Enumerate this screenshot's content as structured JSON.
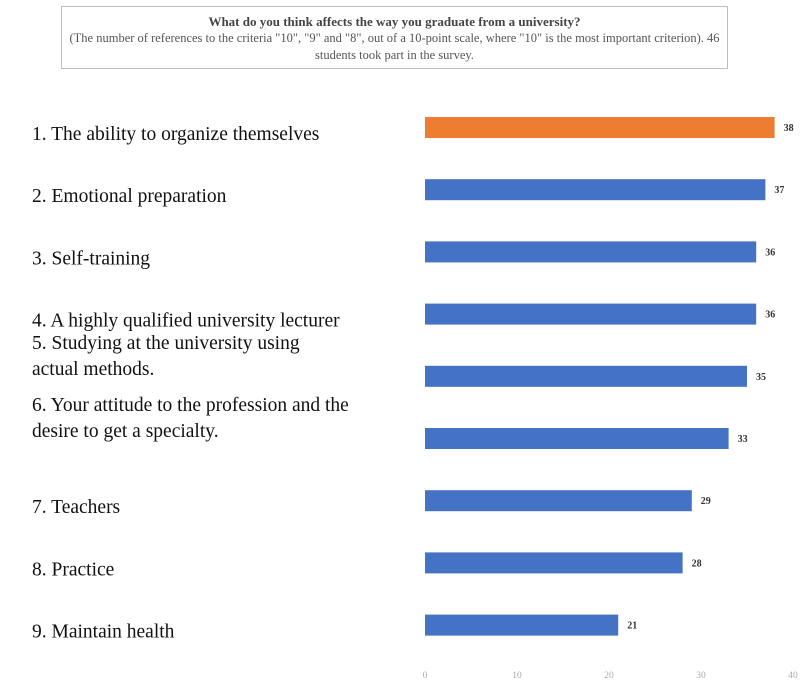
{
  "chart_data": {
    "type": "bar",
    "orientation": "horizontal",
    "title": "What do you think affects the way you graduate from a university?",
    "subtitle": "(The number of references to the criteria \"10\", \"9\" and \"8\", out of a 10-point scale, where \"10\" is the most important criterion). 46 students took part in the survey.",
    "categories": [
      "1. The ability to organize themselves",
      "2. Emotional preparation",
      "3. Self-training",
      "4. A highly qualified university lecturer",
      "5. Studying at the university using actual methods.",
      "6. Your attitude to the profession and the desire to get a specialty.",
      "7. Teachers",
      "8. Practice",
      "9. Maintain health"
    ],
    "values": [
      38,
      37,
      36,
      36,
      35,
      33,
      29,
      28,
      21
    ],
    "value_labels": [
      "38",
      "37",
      "36",
      "36",
      "35",
      "33",
      "29",
      "28",
      "21"
    ],
    "xlim": [
      0,
      40
    ],
    "xticks": [
      "0",
      "10",
      "20",
      "30",
      "40"
    ],
    "highlight_index": 0,
    "colors": {
      "highlight": "#ed7d31",
      "bar": "#4472c4"
    },
    "grid": false,
    "legend": "none"
  }
}
